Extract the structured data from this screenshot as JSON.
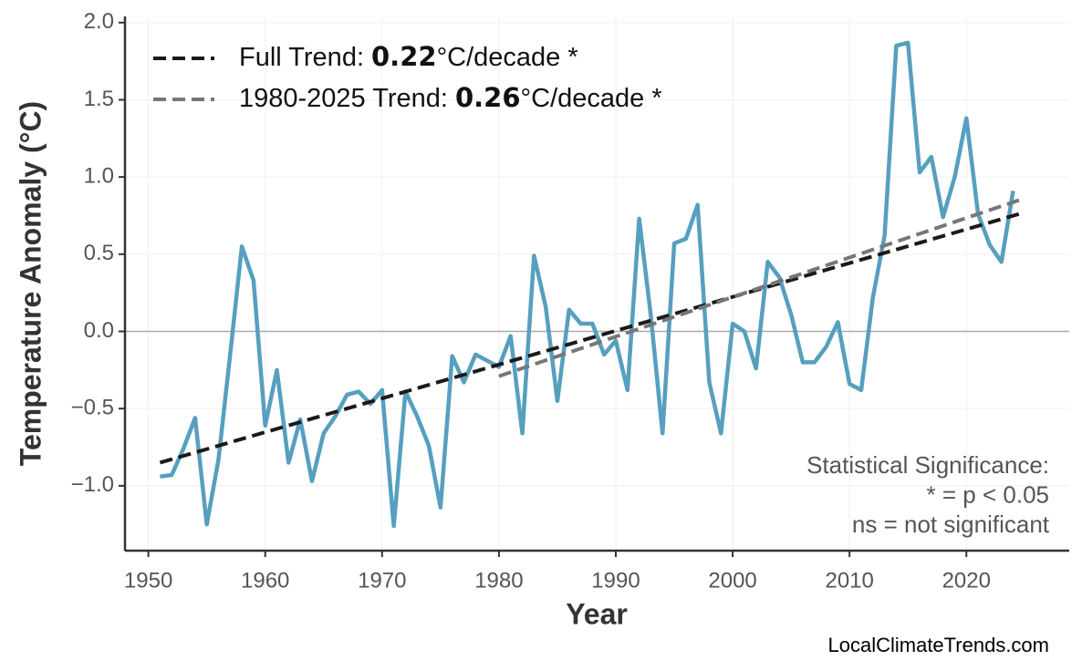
{
  "chart_data": {
    "type": "line",
    "x_label": "Year",
    "y_label": "Temperature Anomaly (°C)",
    "xlim": [
      1948,
      2028.8
    ],
    "ylim": [
      -1.42,
      2.04
    ],
    "xticks": [
      1950,
      1960,
      1970,
      1980,
      1990,
      2000,
      2010,
      2020
    ],
    "yticks": [
      {
        "value": -1.0,
        "label": "−1.0"
      },
      {
        "value": -0.5,
        "label": "−0.5"
      },
      {
        "value": 0.0,
        "label": "0.0"
      },
      {
        "value": 0.5,
        "label": "0.5"
      },
      {
        "value": 1.0,
        "label": "1.0"
      },
      {
        "value": 1.5,
        "label": "1.5"
      },
      {
        "value": 2.0,
        "label": "2.0"
      }
    ],
    "grid": true,
    "hline": 0,
    "series": [
      {
        "color": "#569fbf",
        "x": [
          1951,
          1952,
          1953,
          1954,
          1955,
          1956,
          1957,
          1958,
          1959,
          1960,
          1961,
          1962,
          1963,
          1964,
          1965,
          1966,
          1967,
          1968,
          1969,
          1970,
          1971,
          1972,
          1973,
          1974,
          1975,
          1976,
          1977,
          1978,
          1979,
          1980,
          1981,
          1982,
          1983,
          1984,
          1985,
          1986,
          1987,
          1988,
          1989,
          1990,
          1991,
          1992,
          1993,
          1994,
          1995,
          1996,
          1997,
          1998,
          1999,
          2000,
          2001,
          2002,
          2003,
          2004,
          2005,
          2006,
          2007,
          2008,
          2009,
          2010,
          2011,
          2012,
          2013,
          2014,
          2015,
          2016,
          2017,
          2018,
          2019,
          2020,
          2021,
          2022,
          2023,
          2024
        ],
        "values": [
          -0.94,
          -0.93,
          -0.76,
          -0.56,
          -1.25,
          -0.83,
          -0.15,
          0.55,
          0.33,
          -0.61,
          -0.25,
          -0.85,
          -0.57,
          -0.97,
          -0.66,
          -0.55,
          -0.41,
          -0.39,
          -0.47,
          -0.38,
          -1.26,
          -0.39,
          -0.55,
          -0.74,
          -1.14,
          -0.16,
          -0.33,
          -0.15,
          -0.19,
          -0.23,
          -0.03,
          -0.66,
          0.49,
          0.16,
          -0.45,
          0.14,
          0.05,
          0.05,
          -0.15,
          -0.06,
          -0.38,
          0.73,
          0.1,
          -0.66,
          0.57,
          0.6,
          0.82,
          -0.33,
          -0.66,
          0.05,
          0.0,
          -0.24,
          0.45,
          0.35,
          0.11,
          -0.2,
          -0.2,
          -0.1,
          0.06,
          -0.34,
          -0.38,
          0.22,
          0.62,
          1.85,
          1.87,
          1.03,
          1.13,
          0.74,
          1.0,
          1.38,
          0.76,
          0.56,
          0.45,
          0.91
        ]
      },
      {
        "name": "Full Trend:",
        "slope": 0.22,
        "unit": "°C/decade *",
        "color": "#1a1a1a",
        "dashed": true,
        "x": [
          1951,
          2024.5
        ],
        "values": [
          -0.85,
          0.76
        ]
      },
      {
        "name": "1980-2025 Trend:",
        "slope": 0.26,
        "unit": "°C/decade *",
        "color": "#777777",
        "dashed": true,
        "x": [
          1980,
          2024.5
        ],
        "values": [
          -0.29,
          0.85
        ]
      }
    ],
    "annotation": [
      "Statistical Significance:",
      "* = p < 0.05",
      "ns = not significant"
    ],
    "footer": "LocalClimateTrends.com"
  }
}
